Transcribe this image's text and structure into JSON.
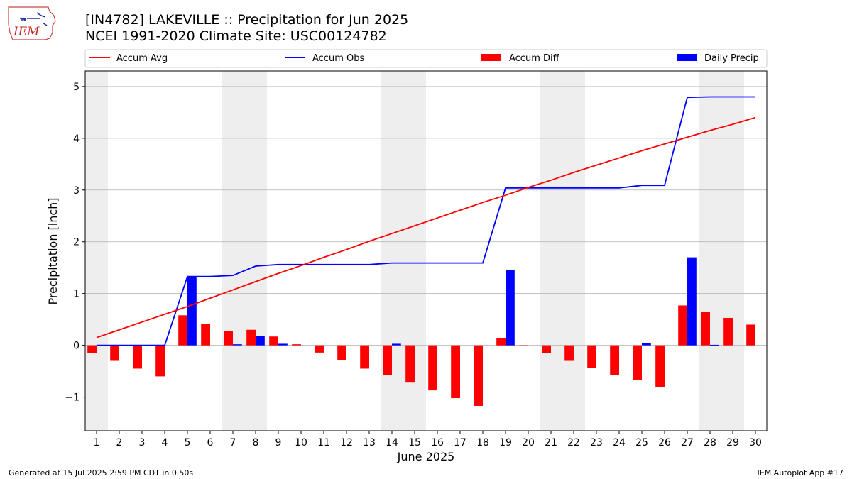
{
  "header": {
    "title_line1": "[IN4782] LAKEVILLE :: Precipitation for Jun 2025",
    "title_line2": "NCEI 1991-2020 Climate Site: USC00124782",
    "logo_text": "IEM"
  },
  "footer": {
    "left": "Generated at 15 Jul 2025 2:59 PM CDT in 0.50s",
    "right": "IEM Autoplot App #17"
  },
  "colors": {
    "avg": "#ff0000",
    "obs": "#0000ff",
    "diff": "#ff0000",
    "daily": "#0000ff",
    "weekend_band": "#eeeeee",
    "grid": "#b0b0b0"
  },
  "chart_data": {
    "type": "bar",
    "xlabel": "June 2025",
    "ylabel": "Precipitation [inch]",
    "ylim": [
      -1.65,
      5.3
    ],
    "yticks": [
      -1,
      0,
      1,
      2,
      3,
      4,
      5
    ],
    "ytick_labels": [
      "−1",
      "0",
      "1",
      "2",
      "3",
      "4",
      "5"
    ],
    "grid": "horizontal",
    "legend_position": "top",
    "days": [
      1,
      2,
      3,
      4,
      5,
      6,
      7,
      8,
      9,
      10,
      11,
      12,
      13,
      14,
      15,
      16,
      17,
      18,
      19,
      20,
      21,
      22,
      23,
      24,
      25,
      26,
      27,
      28,
      29,
      30
    ],
    "weekend_bands": [
      [
        0.5,
        1.5
      ],
      [
        6.5,
        8.5
      ],
      [
        13.5,
        15.5
      ],
      [
        20.5,
        22.5
      ],
      [
        27.5,
        29.5
      ]
    ],
    "legend": [
      "Accum Avg",
      "Accum Obs",
      "Accum Diff",
      "Daily Precip"
    ],
    "series": [
      {
        "name": "Accum Avg",
        "kind": "line",
        "values": [
          0.15,
          0.3,
          0.45,
          0.6,
          0.75,
          0.91,
          1.07,
          1.23,
          1.39,
          1.54,
          1.7,
          1.85,
          2.01,
          2.16,
          2.31,
          2.46,
          2.61,
          2.76,
          2.9,
          3.05,
          3.19,
          3.34,
          3.48,
          3.62,
          3.76,
          3.89,
          4.02,
          4.15,
          4.27,
          4.4
        ]
      },
      {
        "name": "Accum Obs",
        "kind": "line",
        "values": [
          0,
          0,
          0,
          0,
          1.33,
          1.33,
          1.35,
          1.53,
          1.56,
          1.56,
          1.56,
          1.56,
          1.56,
          1.59,
          1.59,
          1.59,
          1.59,
          1.59,
          3.04,
          3.04,
          3.04,
          3.04,
          3.04,
          3.04,
          3.09,
          3.09,
          4.79,
          4.8,
          4.8,
          4.8
        ]
      },
      {
        "name": "Accum Diff",
        "kind": "bar",
        "values": [
          -0.15,
          -0.3,
          -0.45,
          -0.6,
          0.58,
          0.42,
          0.28,
          0.3,
          0.17,
          0.02,
          -0.14,
          -0.29,
          -0.45,
          -0.57,
          -0.72,
          -0.87,
          -1.02,
          -1.17,
          0.14,
          -0.01,
          -0.15,
          -0.3,
          -0.44,
          -0.58,
          -0.67,
          -0.8,
          0.77,
          0.65,
          0.53,
          0.4
        ]
      },
      {
        "name": "Daily Precip",
        "kind": "bar",
        "values": [
          0,
          0,
          0,
          0,
          1.33,
          0,
          0.02,
          0.18,
          0.03,
          0,
          0,
          0,
          0,
          0.03,
          0,
          0,
          0,
          0,
          1.45,
          0,
          0,
          0,
          0,
          0,
          0.05,
          0,
          1.7,
          0.01,
          0,
          0
        ]
      }
    ]
  }
}
